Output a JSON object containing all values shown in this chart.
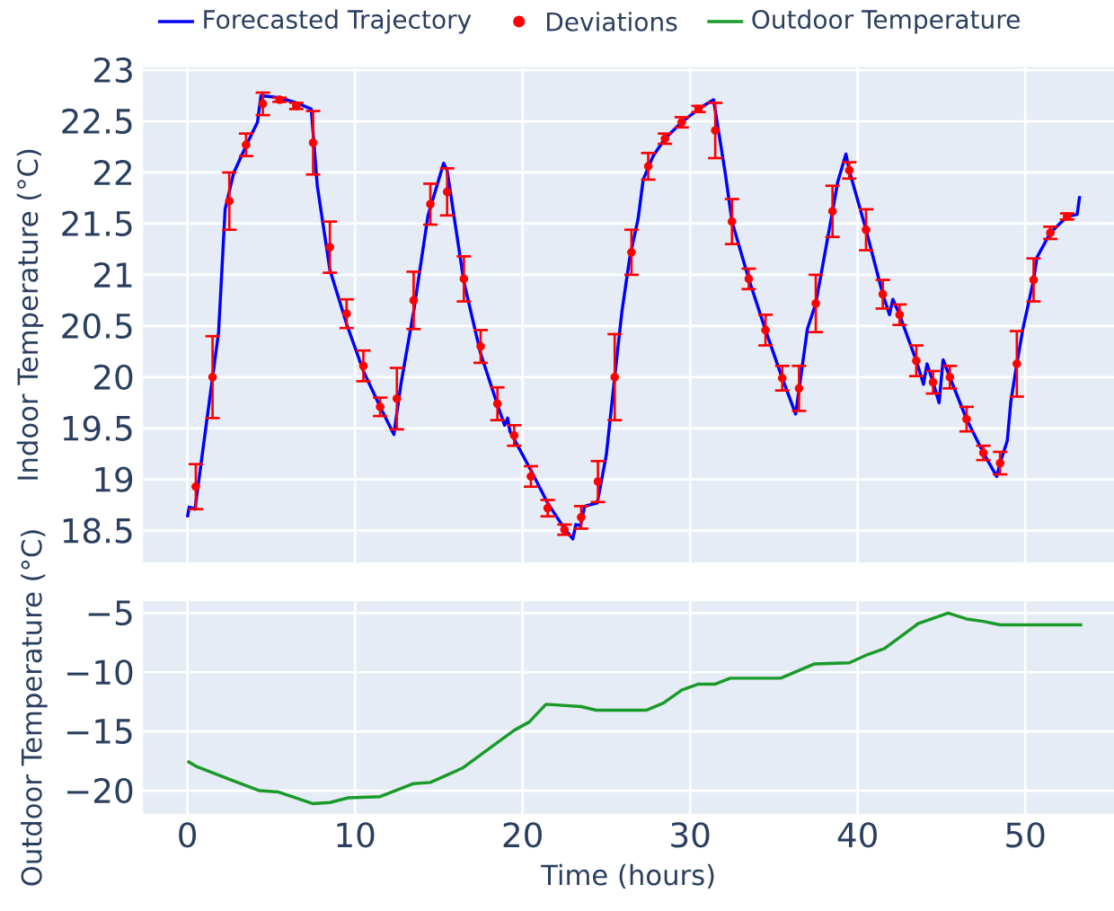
{
  "chart_data": [
    {
      "type": "line",
      "ylabel": "Indoor Temperature (°C)",
      "xlim": [
        -2.65,
        55.3
      ],
      "ylim": [
        18.19,
        23.03
      ],
      "xticks": [
        0,
        10,
        20,
        30,
        40,
        50
      ],
      "yticks": [
        18.5,
        19,
        19.5,
        20,
        20.5,
        21,
        21.5,
        22,
        22.5,
        23
      ],
      "tick_labels": "y",
      "grid": true,
      "legend": "top",
      "series": [
        {
          "name": "Forecasted Trajectory",
          "color": "#0000ff",
          "x": [
            0,
            0.1,
            0.45,
            1.86,
            2.25,
            2.75,
            3.5,
            4.18,
            4.39,
            5.5,
            6.5,
            7.39,
            7.75,
            8.5,
            9.5,
            10.5,
            11.5,
            12.32,
            12.75,
            13.5,
            14.36,
            15.29,
            15.5,
            16.5,
            17.5,
            18.5,
            18.93,
            19.11,
            19.25,
            20.5,
            21.5,
            22.5,
            23.0,
            23.18,
            23.46,
            23.71,
            24.46,
            25.0,
            25.5,
            25.93,
            26.4,
            26.9,
            27.2,
            27.79,
            28.5,
            29.5,
            30.5,
            31.4,
            32.1,
            32.5,
            33.5,
            34.5,
            35.5,
            36.3,
            37.0,
            37.5,
            38.5,
            38.8,
            39.3,
            39.5,
            40.5,
            41.5,
            41.9,
            42.1,
            42.5,
            43.5,
            43.93,
            44.14,
            44.5,
            44.86,
            45.1,
            45.5,
            46.5,
            47.5,
            48.3,
            48.5,
            48.93,
            49.14,
            49.5,
            49.86,
            50.5,
            50.7,
            51.5,
            52.5,
            53.1,
            53.25
          ],
          "values": [
            18.63,
            18.73,
            18.71,
            20.44,
            21.64,
            21.99,
            22.26,
            22.49,
            22.75,
            22.73,
            22.68,
            22.62,
            21.87,
            21.05,
            20.52,
            20.06,
            19.71,
            19.44,
            19.94,
            20.64,
            21.58,
            22.09,
            22.02,
            20.93,
            20.23,
            19.73,
            19.53,
            19.6,
            19.47,
            19.09,
            18.77,
            18.52,
            18.42,
            18.56,
            18.55,
            18.74,
            18.77,
            19.24,
            20.0,
            20.64,
            21.17,
            21.55,
            21.93,
            22.16,
            22.33,
            22.49,
            22.62,
            22.71,
            21.99,
            21.52,
            20.96,
            20.46,
            19.99,
            19.64,
            20.47,
            20.72,
            21.62,
            21.9,
            22.18,
            22.02,
            21.44,
            20.81,
            20.61,
            20.76,
            20.61,
            20.16,
            19.93,
            20.13,
            19.95,
            19.75,
            20.17,
            20.0,
            19.59,
            19.26,
            19.03,
            19.16,
            19.38,
            19.76,
            20.13,
            20.47,
            20.95,
            21.17,
            21.41,
            21.57,
            21.59,
            21.77
          ]
        },
        {
          "name": "Deviations",
          "type": "scatter",
          "marker": "circle",
          "color": "#ff0000",
          "x": [
            0.5,
            1.5,
            2.5,
            3.5,
            4.5,
            5.5,
            6.5,
            7.5,
            8.5,
            9.5,
            10.5,
            11.5,
            12.5,
            13.5,
            14.5,
            15.5,
            16.5,
            17.5,
            18.5,
            19.5,
            20.5,
            21.5,
            22.5,
            23.5,
            24.5,
            25.5,
            26.5,
            27.5,
            28.5,
            29.5,
            30.5,
            31.5,
            32.5,
            33.5,
            34.5,
            35.5,
            36.5,
            37.5,
            38.5,
            39.5,
            40.5,
            41.5,
            42.5,
            43.5,
            44.5,
            45.5,
            46.5,
            47.5,
            48.5,
            49.5,
            50.5,
            51.5,
            52.5
          ],
          "values": [
            18.93,
            20.0,
            21.72,
            22.27,
            22.67,
            22.71,
            22.65,
            22.29,
            21.27,
            20.62,
            20.11,
            19.71,
            19.79,
            20.75,
            21.69,
            21.81,
            20.96,
            20.3,
            19.74,
            19.43,
            19.03,
            18.72,
            18.51,
            18.63,
            18.98,
            20.0,
            21.22,
            22.06,
            22.33,
            22.49,
            22.62,
            22.41,
            21.52,
            20.96,
            20.46,
            19.99,
            19.89,
            20.72,
            21.62,
            22.02,
            21.44,
            20.81,
            20.61,
            20.16,
            19.95,
            20.0,
            19.59,
            19.26,
            19.16,
            20.13,
            20.95,
            21.41,
            21.57
          ],
          "errors": [
            0.22,
            0.4,
            0.28,
            0.11,
            0.11,
            0.02,
            0.03,
            0.31,
            0.25,
            0.14,
            0.15,
            0.09,
            0.3,
            0.28,
            0.2,
            0.23,
            0.22,
            0.16,
            0.16,
            0.1,
            0.1,
            0.08,
            0.05,
            0.11,
            0.2,
            0.42,
            0.22,
            0.13,
            0.05,
            0.05,
            0.03,
            0.27,
            0.22,
            0.1,
            0.15,
            0.12,
            0.22,
            0.28,
            0.25,
            0.08,
            0.2,
            0.14,
            0.1,
            0.15,
            0.11,
            0.11,
            0.12,
            0.07,
            0.11,
            0.32,
            0.21,
            0.06,
            0.03
          ]
        }
      ]
    },
    {
      "type": "line",
      "xlabel": "Time (hours)",
      "ylabel": "Outdoor Temperature (°C)",
      "xlim": [
        -2.65,
        55.3
      ],
      "ylim": [
        -21.95,
        -4.0
      ],
      "xticks": [
        0,
        10,
        20,
        30,
        40,
        50
      ],
      "yticks": [
        {
          "value": -20,
          "label": "−20"
        },
        {
          "value": -15,
          "label": "−15"
        },
        {
          "value": -10,
          "label": "−10"
        },
        {
          "value": -5,
          "label": "−5"
        }
      ],
      "grid": true,
      "legend": "top",
      "series": [
        {
          "name": "Outdoor Temperature",
          "color": "#1a9a28",
          "x": [
            0,
            0.6,
            4.3,
            5.4,
            7.5,
            8.5,
            9.6,
            11.5,
            13.5,
            14.5,
            16.4,
            19.5,
            20.4,
            21.4,
            23.5,
            24.4,
            27.4,
            28.4,
            29.5,
            30.5,
            31.5,
            32.4,
            35.4,
            37.4,
            39.5,
            40.6,
            41.6,
            43.6,
            45.4,
            46.5,
            47.5,
            48.5,
            53.4
          ],
          "values": [
            -17.5,
            -18.0,
            -20.0,
            -20.1,
            -21.1,
            -21.0,
            -20.6,
            -20.5,
            -19.4,
            -19.3,
            -18.1,
            -14.9,
            -14.2,
            -12.7,
            -12.9,
            -13.2,
            -13.2,
            -12.6,
            -11.5,
            -11.0,
            -11.0,
            -10.5,
            -10.5,
            -9.3,
            -9.2,
            -8.5,
            -8.0,
            -5.9,
            -5.0,
            -5.5,
            -5.7,
            -6.0,
            -6.0
          ]
        }
      ]
    }
  ]
}
